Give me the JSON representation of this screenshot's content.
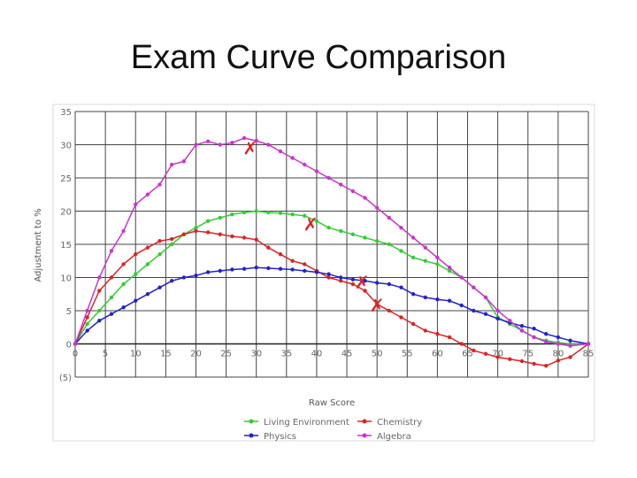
{
  "slide": {
    "title": "Exam Curve Comparison"
  },
  "chart_data": {
    "type": "line",
    "title": "",
    "xlabel": "Raw Score",
    "ylabel": "Adjustment to %",
    "xlim": [
      0,
      85
    ],
    "ylim": [
      -5,
      35
    ],
    "x_ticks": [
      0,
      5,
      10,
      15,
      20,
      25,
      30,
      35,
      40,
      45,
      50,
      55,
      60,
      65,
      70,
      75,
      80,
      85
    ],
    "y_ticks": [
      35,
      30,
      25,
      20,
      15,
      10,
      5,
      0,
      -5
    ],
    "y_tick_labels": [
      "35",
      "30",
      "25",
      "20",
      "15",
      "10",
      "5",
      "0",
      "(5)"
    ],
    "grid": true,
    "legend_position": "bottom",
    "series": [
      {
        "name": "Living Environment",
        "color": "#33cc33",
        "points": [
          [
            0,
            0
          ],
          [
            2,
            3
          ],
          [
            4,
            5
          ],
          [
            6,
            7
          ],
          [
            8,
            9
          ],
          [
            10,
            10.5
          ],
          [
            12,
            12
          ],
          [
            14,
            13.5
          ],
          [
            16,
            15
          ],
          [
            18,
            16.5
          ],
          [
            20,
            17.5
          ],
          [
            22,
            18.5
          ],
          [
            24,
            19
          ],
          [
            26,
            19.5
          ],
          [
            28,
            19.8
          ],
          [
            30,
            20
          ],
          [
            32,
            19.8
          ],
          [
            34,
            19.7
          ],
          [
            36,
            19.5
          ],
          [
            38,
            19.3
          ],
          [
            40,
            18.5
          ],
          [
            42,
            17.5
          ],
          [
            44,
            17
          ],
          [
            46,
            16.5
          ],
          [
            48,
            16
          ],
          [
            50,
            15.5
          ],
          [
            52,
            15
          ],
          [
            54,
            14
          ],
          [
            56,
            13
          ],
          [
            58,
            12.5
          ],
          [
            60,
            12
          ],
          [
            62,
            11
          ],
          [
            64,
            10
          ],
          [
            66,
            8.5
          ],
          [
            68,
            7
          ],
          [
            70,
            4
          ],
          [
            72,
            3
          ],
          [
            74,
            2
          ],
          [
            76,
            1
          ],
          [
            78,
            0.5
          ],
          [
            80,
            0.2
          ],
          [
            82,
            0
          ],
          [
            85,
            0
          ]
        ]
      },
      {
        "name": "Chemistry",
        "color": "#dd2222",
        "points": [
          [
            0,
            0
          ],
          [
            2,
            4
          ],
          [
            4,
            8
          ],
          [
            6,
            10
          ],
          [
            8,
            12
          ],
          [
            10,
            13.5
          ],
          [
            12,
            14.5
          ],
          [
            14,
            15.5
          ],
          [
            16,
            15.8
          ],
          [
            18,
            16.5
          ],
          [
            20,
            17
          ],
          [
            22,
            16.8
          ],
          [
            24,
            16.5
          ],
          [
            26,
            16.2
          ],
          [
            28,
            16
          ],
          [
            30,
            15.7
          ],
          [
            32,
            14.5
          ],
          [
            34,
            13.5
          ],
          [
            36,
            12.5
          ],
          [
            38,
            12
          ],
          [
            40,
            11
          ],
          [
            42,
            10
          ],
          [
            44,
            9.5
          ],
          [
            46,
            9
          ],
          [
            48,
            8
          ],
          [
            50,
            6
          ],
          [
            52,
            5
          ],
          [
            54,
            4
          ],
          [
            56,
            3
          ],
          [
            58,
            2
          ],
          [
            60,
            1.5
          ],
          [
            62,
            1
          ],
          [
            64,
            0
          ],
          [
            66,
            -1
          ],
          [
            68,
            -1.5
          ],
          [
            70,
            -2
          ],
          [
            72,
            -2.3
          ],
          [
            74,
            -2.6
          ],
          [
            76,
            -3
          ],
          [
            78,
            -3.3
          ],
          [
            80,
            -2.5
          ],
          [
            82,
            -2
          ],
          [
            85,
            0
          ]
        ]
      },
      {
        "name": "Physics",
        "color": "#2222cc",
        "points": [
          [
            0,
            0
          ],
          [
            2,
            2
          ],
          [
            4,
            3.5
          ],
          [
            6,
            4.5
          ],
          [
            8,
            5.5
          ],
          [
            10,
            6.5
          ],
          [
            12,
            7.5
          ],
          [
            14,
            8.5
          ],
          [
            16,
            9.5
          ],
          [
            18,
            10
          ],
          [
            20,
            10.3
          ],
          [
            22,
            10.8
          ],
          [
            24,
            11
          ],
          [
            26,
            11.2
          ],
          [
            28,
            11.3
          ],
          [
            30,
            11.5
          ],
          [
            32,
            11.4
          ],
          [
            34,
            11.3
          ],
          [
            36,
            11.2
          ],
          [
            38,
            11
          ],
          [
            40,
            10.8
          ],
          [
            42,
            10.5
          ],
          [
            44,
            10
          ],
          [
            46,
            9.7
          ],
          [
            48,
            9.5
          ],
          [
            50,
            9.2
          ],
          [
            52,
            9
          ],
          [
            54,
            8.5
          ],
          [
            56,
            7.5
          ],
          [
            58,
            7
          ],
          [
            60,
            6.7
          ],
          [
            62,
            6.5
          ],
          [
            64,
            5.8
          ],
          [
            66,
            5
          ],
          [
            68,
            4.5
          ],
          [
            70,
            3.8
          ],
          [
            72,
            3.2
          ],
          [
            74,
            2.7
          ],
          [
            76,
            2.3
          ],
          [
            78,
            1.5
          ],
          [
            80,
            1
          ],
          [
            82,
            0.5
          ],
          [
            85,
            0
          ]
        ]
      },
      {
        "name": "Algebra",
        "color": "#cc33cc",
        "points": [
          [
            0,
            0
          ],
          [
            2,
            5
          ],
          [
            4,
            10
          ],
          [
            6,
            14
          ],
          [
            8,
            17
          ],
          [
            10,
            21
          ],
          [
            12,
            22.5
          ],
          [
            14,
            24
          ],
          [
            16,
            27
          ],
          [
            18,
            27.5
          ],
          [
            20,
            30
          ],
          [
            22,
            30.5
          ],
          [
            24,
            30
          ],
          [
            26,
            30.3
          ],
          [
            28,
            31
          ],
          [
            30,
            30.6
          ],
          [
            32,
            30
          ],
          [
            34,
            29
          ],
          [
            36,
            28
          ],
          [
            38,
            27
          ],
          [
            40,
            26
          ],
          [
            42,
            25
          ],
          [
            44,
            24
          ],
          [
            46,
            23
          ],
          [
            48,
            22
          ],
          [
            50,
            20.5
          ],
          [
            52,
            19
          ],
          [
            54,
            17.5
          ],
          [
            56,
            16
          ],
          [
            58,
            14.5
          ],
          [
            60,
            13
          ],
          [
            62,
            11.5
          ],
          [
            64,
            10
          ],
          [
            66,
            8.5
          ],
          [
            68,
            7
          ],
          [
            70,
            5
          ],
          [
            72,
            3.5
          ],
          [
            74,
            2
          ],
          [
            76,
            1
          ],
          [
            78,
            0.3
          ],
          [
            80,
            0
          ],
          [
            82,
            -0.3
          ],
          [
            85,
            0
          ]
        ]
      }
    ],
    "annotations": [
      {
        "symbol": "✗",
        "x": 29,
        "y": 29.5,
        "color": "#dd2222"
      },
      {
        "symbol": "✗",
        "x": 39,
        "y": 18,
        "color": "#dd2222"
      },
      {
        "symbol": "✗",
        "x": 47.5,
        "y": 9.3,
        "color": "#dd2222"
      },
      {
        "symbol": "✗",
        "x": 50,
        "y": 5.8,
        "color": "#dd2222"
      }
    ],
    "legend_layout": [
      [
        "Living Environment",
        "Chemistry"
      ],
      [
        "Physics",
        "Algebra"
      ]
    ]
  }
}
